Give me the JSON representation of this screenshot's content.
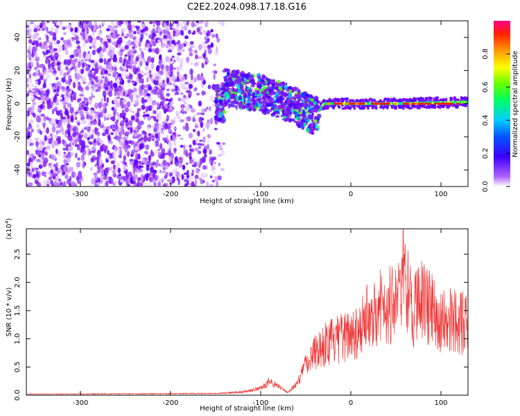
{
  "title": "C2E2.2024.098.17.18.G16",
  "chart_data": [
    {
      "type": "heatmap",
      "xlabel": "Height of straight line (km)",
      "ylabel": "Frequency (Hz)",
      "xlim": [
        -360,
        130
      ],
      "ylim": [
        -50,
        50
      ],
      "xticks": [
        -300,
        -200,
        -100,
        0,
        100
      ],
      "yticks": [
        -40,
        -20,
        0,
        20,
        40
      ],
      "description_of_data": "Noise speckle for heights below about -145 km; signal band near 0 Hz sloping from about +10 Hz at -140 km to about -10 Hz at -35 km; strong narrow line at 0 Hz from -35 km to 130 km.",
      "ridge_points": [
        {
          "x": -140,
          "y": 10
        },
        {
          "x": -120,
          "y": 8
        },
        {
          "x": -100,
          "y": 6
        },
        {
          "x": -80,
          "y": 3
        },
        {
          "x": -60,
          "y": -2
        },
        {
          "x": -40,
          "y": -8
        },
        {
          "x": -30,
          "y": 0
        },
        {
          "x": 0,
          "y": 0
        },
        {
          "x": 50,
          "y": 0
        },
        {
          "x": 130,
          "y": 1
        }
      ],
      "colorbar": {
        "label": "Normalized spectral amplitude",
        "ticks": [
          0.0,
          0.2,
          0.4,
          0.6,
          0.8
        ],
        "range": [
          0,
          1
        ]
      }
    },
    {
      "type": "line",
      "xlabel": "Height of straight line (km)",
      "ylabel": "SNR (10 * v/v)",
      "yscale_label": "(x10",
      "yscale_exp": "4",
      "yscale_close": ")",
      "xlim": [
        -360,
        130
      ],
      "ylim": [
        0,
        2.95
      ],
      "xticks": [
        -300,
        -200,
        -100,
        0,
        100
      ],
      "yticks": [
        "0.0",
        "0.5",
        "1.0",
        "1.5",
        "2.0",
        "2.5"
      ],
      "color": "#ee3333",
      "x": [
        -360,
        -150,
        -120,
        -100,
        -90,
        -80,
        -70,
        -60,
        -50,
        -40,
        -30,
        -20,
        -10,
        0,
        10,
        20,
        30,
        40,
        50,
        60,
        70,
        80,
        90,
        100,
        110,
        120,
        130
      ],
      "y": [
        0.02,
        0.03,
        0.06,
        0.12,
        0.25,
        0.15,
        0.05,
        0.2,
        0.55,
        0.8,
        0.9,
        0.95,
        1.0,
        1.1,
        1.2,
        1.4,
        1.6,
        1.6,
        1.65,
        2.0,
        1.5,
        1.7,
        1.5,
        1.3,
        1.35,
        1.3,
        1.25
      ],
      "peaks": [
        {
          "x": 58,
          "y": 2.95
        },
        {
          "x": 53,
          "y": 2.35
        },
        {
          "x": 75,
          "y": 2.25
        },
        {
          "x": 66,
          "y": 2.3
        },
        {
          "x": 42,
          "y": 1.9
        },
        {
          "x": 35,
          "y": 1.8
        }
      ]
    }
  ]
}
